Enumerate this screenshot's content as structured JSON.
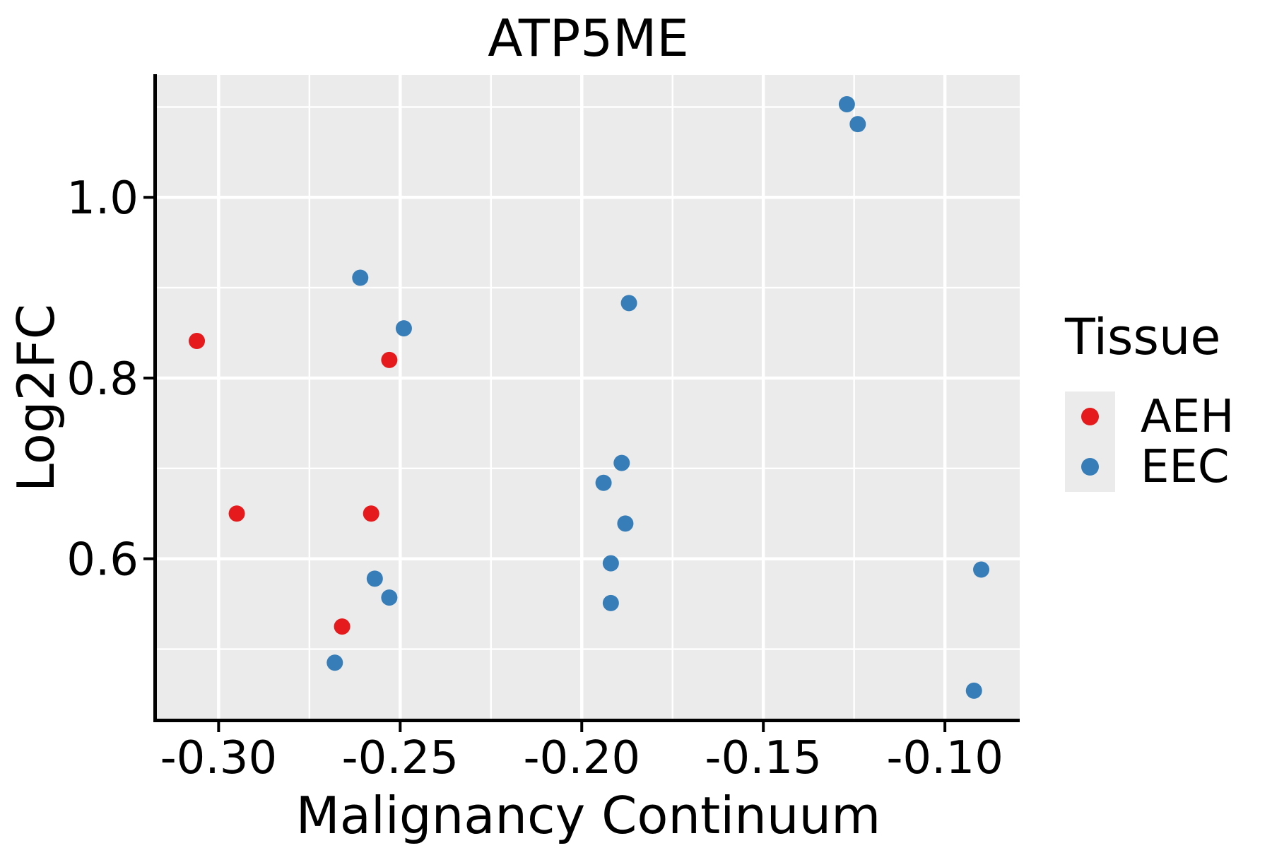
{
  "figure": {
    "title": "ATP5ME"
  },
  "chart_data": {
    "type": "scatter",
    "title": "ATP5ME",
    "xlabel": "Malignancy Continuum",
    "ylabel": "Log2FC",
    "xlim": [
      -0.317,
      -0.0794
    ],
    "ylim": [
      0.423,
      1.1355
    ],
    "grid": true,
    "panel_background": "#ebebeb",
    "grid_color": "#ffffff",
    "axis_color": "#000000",
    "legend_position": "right",
    "x_major_ticks": [
      -0.3,
      -0.25,
      -0.2,
      -0.15,
      -0.1
    ],
    "x_tick_labels": [
      "-0.30",
      "-0.25",
      "-0.20",
      "-0.15",
      "-0.10"
    ],
    "x_minor_ticks": [
      -0.275,
      -0.225,
      -0.175,
      -0.125
    ],
    "y_major_ticks": [
      0.6,
      0.8,
      1.0
    ],
    "y_tick_labels": [
      "0.6",
      "0.8",
      "1.0"
    ],
    "y_minor_ticks": [
      0.5,
      0.7,
      0.9,
      1.1
    ],
    "series": [
      {
        "name": "AEH",
        "color": "#e41a1c",
        "points": [
          [
            -0.306,
            0.841
          ],
          [
            -0.253,
            0.82
          ],
          [
            -0.295,
            0.65
          ],
          [
            -0.258,
            0.65
          ],
          [
            -0.266,
            0.525
          ]
        ]
      },
      {
        "name": "EEC",
        "color": "#377eb8",
        "points": [
          [
            -0.127,
            1.103
          ],
          [
            -0.124,
            1.081
          ],
          [
            -0.261,
            0.911
          ],
          [
            -0.187,
            0.883
          ],
          [
            -0.249,
            0.855
          ],
          [
            -0.189,
            0.706
          ],
          [
            -0.194,
            0.684
          ],
          [
            -0.188,
            0.639
          ],
          [
            -0.192,
            0.595
          ],
          [
            -0.257,
            0.578
          ],
          [
            -0.09,
            0.588
          ],
          [
            -0.253,
            0.557
          ],
          [
            -0.192,
            0.551
          ],
          [
            -0.268,
            0.485
          ],
          [
            -0.092,
            0.454
          ]
        ]
      }
    ]
  },
  "legend": {
    "title": "Tissue",
    "items": [
      {
        "label": "AEH",
        "color": "#e41a1c"
      },
      {
        "label": "EEC",
        "color": "#377eb8"
      }
    ]
  }
}
